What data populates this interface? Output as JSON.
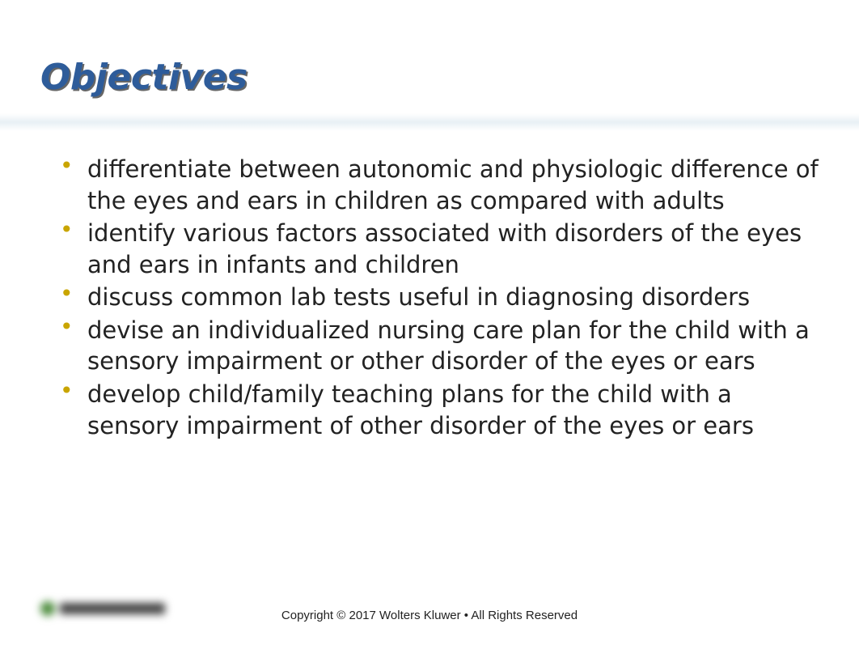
{
  "slide": {
    "title": "Objectives",
    "title_color": "#2e5c9a",
    "title_shadow_color": "#666666",
    "title_fontsize": 44,
    "title_style": "bold italic",
    "divider_gradient": [
      "#ffffff",
      "#e8f0f5",
      "#ffffff"
    ],
    "bullet_color": "#c9a500",
    "body_fontsize": 29,
    "body_color": "#222222",
    "bullets": [
      "differentiate  between autonomic and physiologic difference of the eyes and ears in children as compared with adults",
      "identify various factors associated with disorders of the eyes and ears in infants and children",
      "discuss common lab tests useful in diagnosing disorders",
      "devise an individualized nursing care plan for the child with a sensory impairment or other disorder of the eyes or ears",
      "develop child/family teaching plans for the child with a sensory impairment of other disorder of the eyes or ears"
    ],
    "footer": "Copyright © 2017 Wolters Kluwer • All Rights Reserved",
    "footer_fontsize": 15,
    "logo_accent_color": "#4a8a3a",
    "background_color": "#ffffff"
  }
}
